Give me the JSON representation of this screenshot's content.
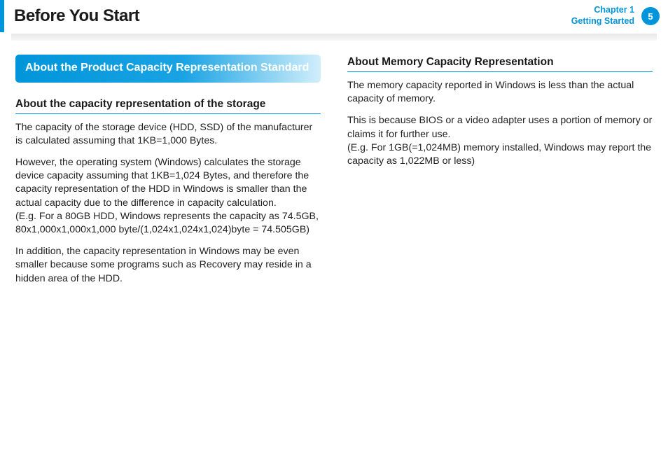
{
  "header": {
    "title": "Before You Start",
    "chapter_line1": "Chapter 1",
    "chapter_line2": "Getting Started",
    "page_number": "5"
  },
  "left": {
    "callout": "About the Product Capacity Representation Standard",
    "subhead": "About the capacity representation of the storage",
    "p1": "The capacity of the storage device (HDD, SSD) of the manufacturer is calculated assuming that 1KB=1,000 Bytes.",
    "p2a": "However, the operating system (Windows) calculates the storage device capacity assuming that 1KB=1,024 Bytes, and therefore the capacity representation of the HDD in Windows is smaller than the actual capacity due to the difference in capacity calculation.",
    "p2b": "(E.g. For a 80GB HDD, Windows represents the capacity as 74.5GB, 80x1,000x1,000x1,000 byte/(1,024x1,024x1,024)byte = 74.505GB)",
    "p3": "In addition, the capacity representation in Windows may be even smaller because some programs such as Recovery may reside in a hidden area of the HDD."
  },
  "right": {
    "subhead": "About Memory Capacity Representation",
    "p1": "The memory capacity reported in Windows is less than the actual capacity of memory.",
    "p2a": "This is because BIOS or a video adapter uses a portion of memory or claims it for further use.",
    "p2b": "(E.g. For 1GB(=1,024MB) memory installed, Windows may report the capacity as 1,022MB or less)"
  },
  "colors": {
    "accent": "#0095da",
    "text": "#222222",
    "bg": "#ffffff"
  }
}
